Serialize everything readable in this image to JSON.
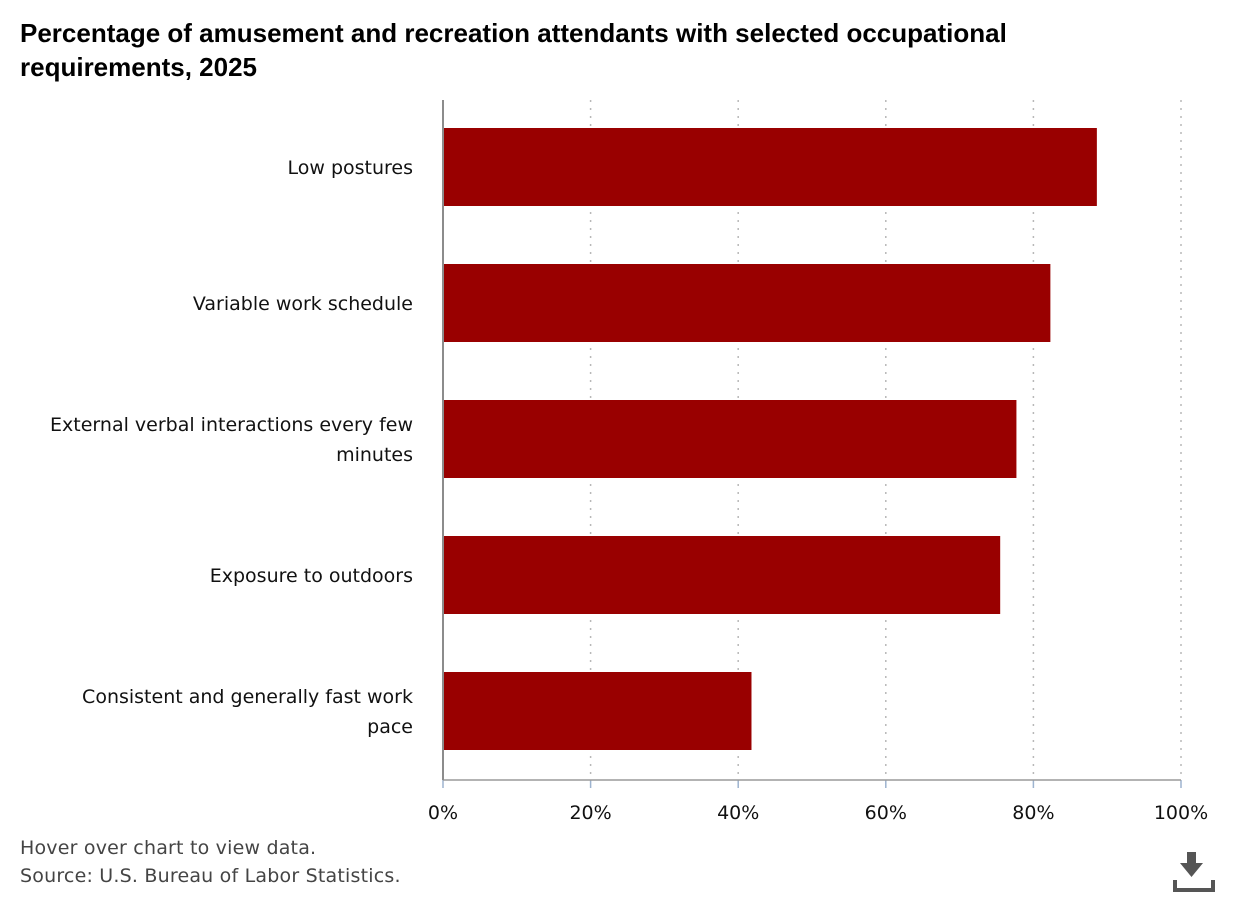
{
  "chart_data": {
    "type": "bar",
    "orientation": "horizontal",
    "title": "Percentage of amusement and recreation attendants with selected occupational requirements, 2025",
    "categories": [
      "Low postures",
      "Variable work schedule",
      "External verbal interactions every few minutes",
      "Exposure to outdoors",
      "Consistent and generally fast work pace"
    ],
    "values": [
      88.6,
      82.3,
      77.7,
      75.5,
      41.8
    ],
    "xlim": [
      0,
      100
    ],
    "xticks": [
      0,
      20,
      40,
      60,
      80,
      100
    ],
    "xtick_labels": [
      "0%",
      "20%",
      "40%",
      "60%",
      "80%",
      "100%"
    ],
    "xlabel": "",
    "ylabel": "",
    "grid": "vertical dotted",
    "legend": "none",
    "bar_color": "#990000"
  },
  "footer": {
    "hover_note": "Hover over chart to view data.",
    "source": "Source: U.S. Bureau of Labor Statistics."
  },
  "icons": {
    "download": "download-icon"
  }
}
